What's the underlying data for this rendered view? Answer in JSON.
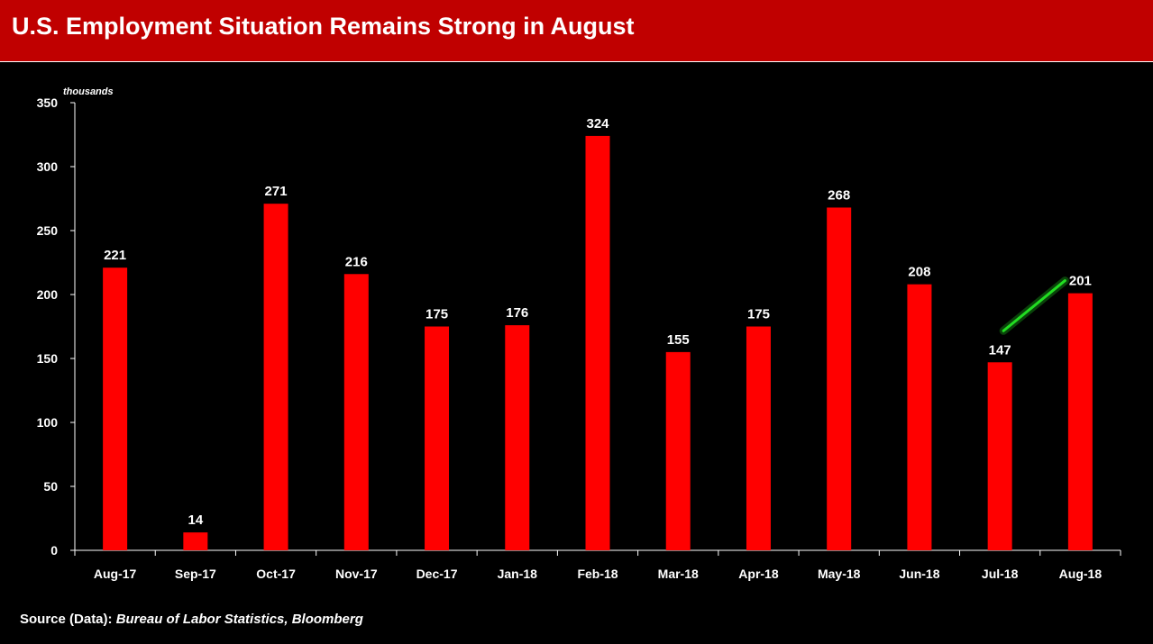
{
  "header": {
    "title": "U.S. Employment Situation Remains Strong in August"
  },
  "source": {
    "prefix": "Source (Data): ",
    "detail": "Bureau of Labor Statistics, Bloomberg"
  },
  "colors": {
    "header_bg": "#c00000",
    "bar": "#ff0000",
    "trend_arrow": "#22dd22"
  },
  "chart_data": {
    "type": "bar",
    "unit_label": "thousands",
    "categories": [
      "Aug-17",
      "Sep-17",
      "Oct-17",
      "Nov-17",
      "Dec-17",
      "Jan-18",
      "Feb-18",
      "Mar-18",
      "Apr-18",
      "May-18",
      "Jun-18",
      "Jul-18",
      "Aug-18"
    ],
    "values": [
      221,
      14,
      271,
      216,
      175,
      176,
      324,
      155,
      175,
      268,
      208,
      147,
      201
    ],
    "ylim": [
      0,
      350
    ],
    "yticks": [
      0,
      50,
      100,
      150,
      200,
      250,
      300,
      350
    ],
    "grid": false,
    "legend": "none",
    "annotation": "green upward line between Jul-18 and Aug-18"
  }
}
